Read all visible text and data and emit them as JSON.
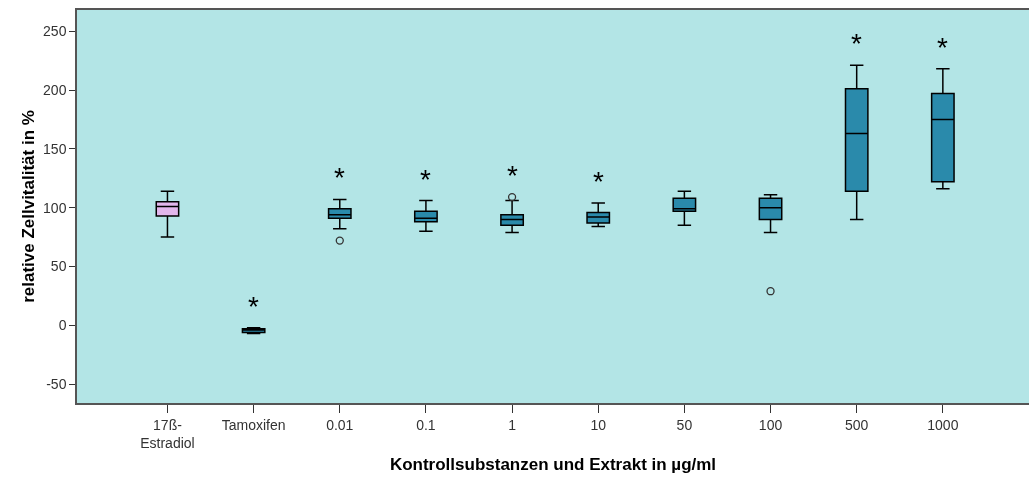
{
  "chart_data": {
    "type": "box",
    "xlabel": "Kontrollsubstanzen und Extrakt in µg/ml",
    "ylabel": "relative Zellvitalität in %",
    "categories": [
      "17ß-Estradiol",
      "Tamoxifen",
      "0.01",
      "0.1",
      "1",
      "10",
      "50",
      "100",
      "500",
      "1000"
    ],
    "boxes": [
      {
        "low": 75,
        "q1": 93,
        "median": 101,
        "q3": 105,
        "high": 114
      },
      {
        "low": -7,
        "q1": -6,
        "median": -4,
        "q3": -3,
        "high": -2
      },
      {
        "low": 82,
        "q1": 91,
        "median": 94,
        "q3": 99,
        "high": 107,
        "outliers": [
          72
        ]
      },
      {
        "low": 80,
        "q1": 88,
        "median": 91,
        "q3": 97,
        "high": 106
      },
      {
        "low": 79,
        "q1": 85,
        "median": 90,
        "q3": 94,
        "high": 106,
        "outliers": [
          109
        ]
      },
      {
        "low": 84,
        "q1": 87,
        "median": 92,
        "q3": 96,
        "high": 104
      },
      {
        "low": 85,
        "q1": 97,
        "median": 99,
        "q3": 108,
        "high": 114
      },
      {
        "low": 79,
        "q1": 90,
        "median": 100,
        "q3": 108,
        "high": 111,
        "outliers": [
          29
        ]
      },
      {
        "low": 90,
        "q1": 114,
        "median": 163,
        "q3": 201,
        "high": 221
      },
      {
        "low": 116,
        "q1": 122,
        "median": 175,
        "q3": 197,
        "high": 218
      }
    ],
    "colors": [
      "#e2b6ec",
      "#2a8aab",
      "#2a8aab",
      "#2a8aab",
      "#2a8aab",
      "#2a8aab",
      "#2a8aab",
      "#2a8aab",
      "#2a8aab",
      "#2a8aab"
    ],
    "annotations": [
      "*",
      "*",
      "*",
      "*",
      "*",
      "*",
      "*"
    ],
    "ylim": [
      -66,
      268
    ],
    "yticks": [
      -50,
      0,
      50,
      100,
      150,
      200,
      250
    ],
    "grid": false
  }
}
